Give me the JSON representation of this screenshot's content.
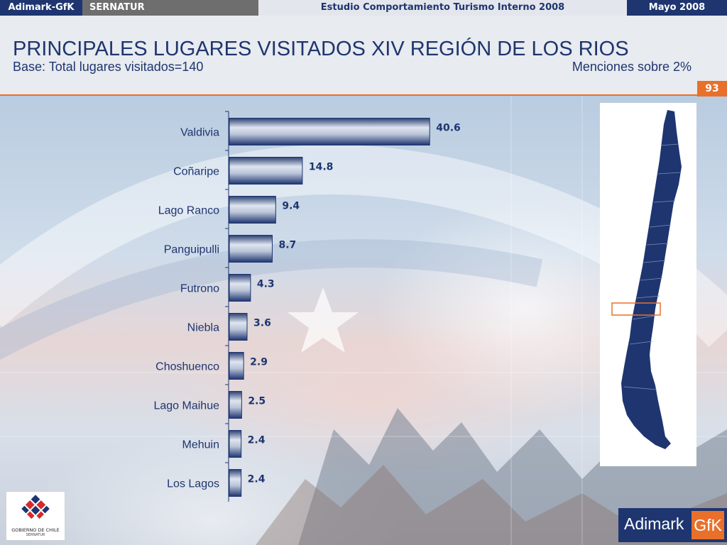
{
  "topbar": {
    "brand": "Adimark-GfK",
    "client": "SERNATUR",
    "study": "Estudio Comportamiento Turismo Interno 2008",
    "date": "Mayo 2008"
  },
  "header": {
    "title": "PRINCIPALES LUGARES VISITADOS XIV REGIÓN DE LOS RIOS",
    "subtitle": "Base: Total lugares visitados=140",
    "note": "Menciones sobre 2%",
    "page_number": "93"
  },
  "chart_data": {
    "type": "bar",
    "orientation": "horizontal",
    "categories": [
      "Valdivia",
      "Coñaripe",
      "Lago Ranco",
      "Panguipulli",
      "Futrono",
      "Niebla",
      "Choshuenco",
      "Lago Maihue",
      "Mehuin",
      "Los Lagos"
    ],
    "values": [
      40.6,
      14.8,
      9.4,
      8.7,
      4.3,
      3.6,
      2.9,
      2.5,
      2.4,
      2.4
    ],
    "value_labels": [
      "40.6",
      "14.8",
      "9.4",
      "8.7",
      "4.3",
      "3.6",
      "2.9",
      "2.5",
      "2.4",
      "2.4"
    ],
    "title": "PRINCIPALES LUGARES VISITADOS XIV REGIÓN DE LOS RIOS",
    "xlim": [
      0,
      41
    ],
    "grid": false,
    "legend": "none"
  },
  "map": {
    "highlighted_region": "XIV Región de Los Ríos"
  },
  "logos": {
    "government_text": "GOBIERNO DE CHILE",
    "government_sub": "SERNATUR",
    "adimark_name": "Adimark",
    "adimark_gfk": "GfK"
  },
  "colors": {
    "brand_navy": "#1e3570",
    "accent_orange": "#e8702a",
    "bar_dark": "#1e3570",
    "bar_light": "#dfe5ef"
  }
}
